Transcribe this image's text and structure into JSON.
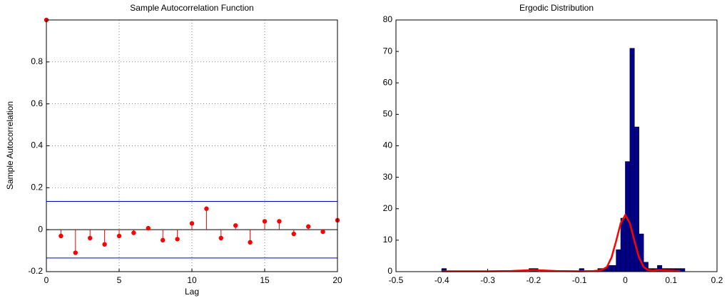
{
  "chart_data": [
    {
      "type": "stem",
      "title": "Sample Autocorrelation Function",
      "xlabel": "Lag",
      "ylabel": "Sample Autocorrelation",
      "x": [
        0,
        1,
        2,
        3,
        4,
        5,
        6,
        7,
        8,
        9,
        10,
        11,
        12,
        13,
        14,
        15,
        16,
        17,
        18,
        19,
        20
      ],
      "values": [
        1,
        -0.03,
        -0.11,
        -0.04,
        -0.07,
        -0.03,
        -0.015,
        0.007,
        -0.05,
        -0.045,
        0.03,
        0.1,
        -0.04,
        0.02,
        -0.06,
        0.04,
        0.04,
        -0.02,
        0.015,
        -0.01,
        0.045
      ],
      "color": "#ff0000",
      "confidence_bounds": {
        "values": [
          0.135,
          -0.135
        ],
        "color": "#0000cc"
      },
      "xlim": [
        0,
        20
      ],
      "ylim": [
        -0.2,
        1
      ],
      "xticks": [
        0,
        5,
        10,
        15,
        20
      ],
      "yticks": [
        -0.2,
        0,
        0.2,
        0.4,
        0.6,
        0.8
      ],
      "grid": true
    },
    {
      "type": "histogram",
      "title": "Ergodic Distribution",
      "bins": [
        -0.41,
        -0.4,
        -0.39,
        -0.38,
        -0.37,
        -0.36,
        -0.35,
        -0.34,
        -0.33,
        -0.32,
        -0.31,
        -0.3,
        -0.29,
        -0.28,
        -0.27,
        -0.26,
        -0.25,
        -0.24,
        -0.23,
        -0.22,
        -0.21,
        -0.2,
        -0.19,
        -0.18,
        -0.17,
        -0.16,
        -0.15,
        -0.14,
        -0.13,
        -0.12,
        -0.11,
        -0.1,
        -0.09,
        -0.08,
        -0.07,
        -0.06,
        -0.05,
        -0.04,
        -0.03,
        -0.02,
        -0.01,
        0,
        0.01,
        0.02,
        0.03,
        0.04,
        0.05,
        0.06,
        0.07,
        0.08,
        0.09,
        0.1,
        0.11,
        0.12,
        0.13
      ],
      "counts": [
        0,
        1,
        0,
        0,
        0,
        0,
        0,
        0,
        0,
        0,
        0,
        0,
        0,
        0,
        0,
        0,
        0,
        0,
        0,
        0,
        1,
        1,
        0,
        0,
        0,
        0,
        0,
        0,
        0,
        0,
        0,
        1,
        0,
        0,
        0,
        1,
        1,
        2,
        2,
        7,
        17,
        35,
        71,
        46,
        12,
        3,
        1,
        1,
        2,
        1,
        1,
        1,
        1,
        1,
        0
      ],
      "color": "#00008b",
      "curve": {
        "x": [
          -0.4,
          -0.3,
          -0.25,
          -0.2,
          -0.15,
          -0.1,
          -0.07,
          -0.06,
          -0.05,
          -0.04,
          -0.03,
          -0.02,
          -0.01,
          0,
          0.01,
          0.02,
          0.03,
          0.04,
          0.05,
          0.06,
          0.07,
          0.1,
          0.12
        ],
        "values": [
          0.1,
          0.1,
          0.2,
          0.5,
          0.2,
          0.1,
          0.2,
          0.3,
          0.6,
          1.5,
          4.5,
          9.7,
          15.4,
          18,
          15.4,
          9.7,
          4.5,
          1.5,
          0.5,
          0.3,
          0.5,
          0.3,
          0.2
        ],
        "color": "#ff0000"
      },
      "xlim": [
        -0.5,
        0.2
      ],
      "ylim": [
        0,
        80
      ],
      "xticks": [
        -0.5,
        -0.4,
        -0.3,
        -0.2,
        -0.1,
        0,
        0.1,
        0.2
      ],
      "yticks": [
        0,
        10,
        20,
        30,
        40,
        50,
        60,
        70,
        80
      ]
    }
  ]
}
